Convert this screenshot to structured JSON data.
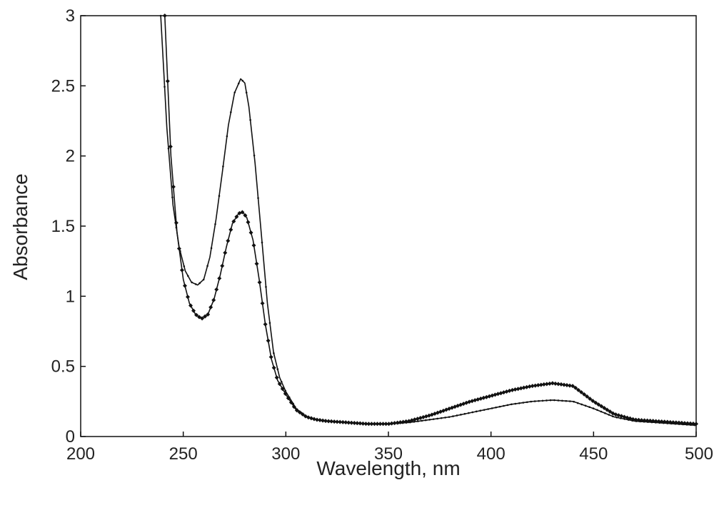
{
  "chart_data": {
    "type": "line",
    "title": "",
    "xlabel": "Wavelength, nm",
    "ylabel": "Absorbance",
    "xlim": [
      200,
      500
    ],
    "ylim": [
      0,
      3
    ],
    "x_ticks": [
      200,
      250,
      300,
      350,
      400,
      450,
      500
    ],
    "y_ticks": [
      0,
      0.5,
      1,
      1.5,
      2,
      2.5,
      3
    ],
    "x_tick_labels": [
      "200",
      "250",
      "300",
      "350",
      "400",
      "450",
      "500"
    ],
    "y_tick_labels": [
      "0",
      "0.5",
      "1",
      "1.5",
      "2",
      "2.5",
      "3"
    ],
    "grid": false,
    "legend": "none",
    "series": [
      {
        "style": "solid line with small dot markers",
        "color": "#111111",
        "x": [
          239,
          242,
          245,
          248,
          251,
          254,
          257,
          260,
          263,
          266,
          269,
          272,
          275,
          278,
          280,
          282,
          285,
          288,
          291,
          294,
          297,
          300,
          305,
          310,
          315,
          320,
          330,
          340,
          350,
          360,
          370,
          380,
          390,
          400,
          410,
          420,
          430,
          440,
          450,
          460,
          470,
          480,
          490,
          500
        ],
        "y": [
          3.0,
          2.2,
          1.65,
          1.35,
          1.18,
          1.1,
          1.08,
          1.12,
          1.28,
          1.55,
          1.88,
          2.22,
          2.45,
          2.55,
          2.52,
          2.35,
          1.95,
          1.45,
          0.95,
          0.6,
          0.42,
          0.32,
          0.2,
          0.14,
          0.12,
          0.11,
          0.1,
          0.09,
          0.09,
          0.1,
          0.12,
          0.14,
          0.17,
          0.2,
          0.23,
          0.25,
          0.26,
          0.25,
          0.2,
          0.14,
          0.11,
          0.1,
          0.09,
          0.08
        ]
      },
      {
        "style": "solid line with diamond markers",
        "color": "#111111",
        "x": [
          241,
          244,
          247,
          250,
          253,
          256,
          259,
          262,
          265,
          268,
          271,
          274,
          277,
          279,
          281,
          284,
          287,
          290,
          293,
          296,
          300,
          305,
          310,
          315,
          320,
          330,
          340,
          350,
          360,
          370,
          380,
          390,
          400,
          410,
          420,
          430,
          440,
          450,
          460,
          470,
          480,
          490,
          500
        ],
        "y": [
          3.0,
          2.0,
          1.45,
          1.12,
          0.95,
          0.87,
          0.84,
          0.87,
          0.98,
          1.15,
          1.35,
          1.52,
          1.59,
          1.6,
          1.56,
          1.4,
          1.12,
          0.8,
          0.55,
          0.4,
          0.3,
          0.19,
          0.14,
          0.12,
          0.11,
          0.1,
          0.09,
          0.09,
          0.11,
          0.15,
          0.2,
          0.25,
          0.29,
          0.33,
          0.36,
          0.38,
          0.36,
          0.25,
          0.16,
          0.12,
          0.11,
          0.1,
          0.09
        ]
      }
    ]
  }
}
